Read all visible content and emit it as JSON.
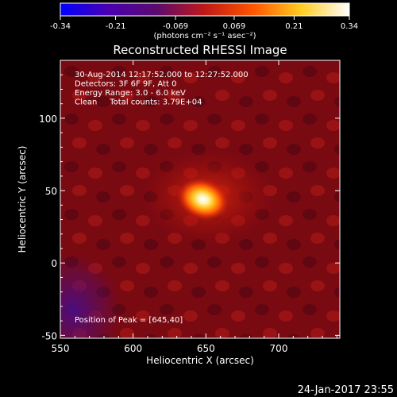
{
  "chart_data": {
    "type": "heatmap",
    "title": "Reconstructed RHESSI Image",
    "xlabel": "Heliocentric X (arcsec)",
    "ylabel": "Heliocentric Y (arcsec)",
    "xlim": [
      550,
      742
    ],
    "ylim": [
      -52,
      140
    ],
    "x_ticks": [
      550,
      600,
      650,
      700
    ],
    "y_ticks": [
      -50,
      0,
      50,
      100
    ],
    "info_lines": [
      "30-Aug-2014 12:17:52.000 to 12:27:52.000",
      "Detectors: 3F 6F 9F, Att 0",
      "Energy Range: 3.0 - 6.0 keV",
      "Clean     Total counts: 3.79E+04"
    ],
    "peak_text": "Position of Peak = [645,40]",
    "peak": {
      "x": 645,
      "y": 40,
      "value": 0.34
    },
    "source_center": {
      "x": 648,
      "y": 44
    },
    "colorbar": {
      "min": -0.34,
      "max": 0.34,
      "tick_values": [
        -0.34,
        -0.21,
        -0.069,
        0.069,
        0.21,
        0.34
      ],
      "tick_labels": [
        "-0.34",
        "-0.21",
        "-0.069",
        "0.069",
        "0.21",
        "0.34"
      ],
      "unit": "(photons cm⁻² s⁻¹ asec⁻²)",
      "colortable": [
        "#0000ff",
        "#4a00b0",
        "#5c0a6e",
        "#c01818",
        "#ff5500",
        "#ffcc22",
        "#ffffff"
      ]
    },
    "grid": false,
    "legend": "none",
    "timestamp": "24-Jan-2017 23:55"
  }
}
